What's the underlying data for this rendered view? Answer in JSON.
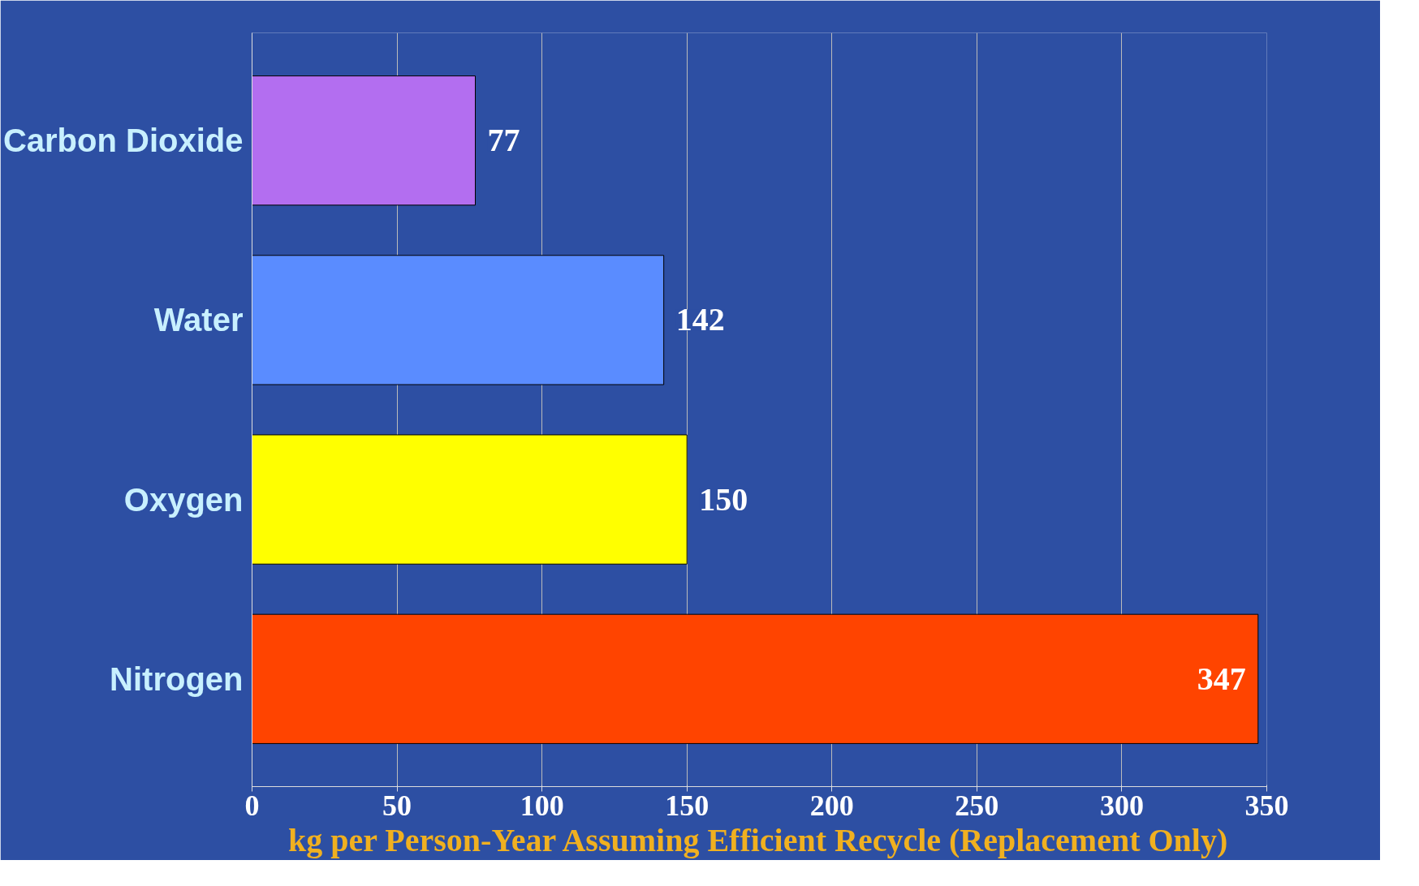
{
  "chart_data": {
    "type": "bar",
    "orientation": "horizontal",
    "categories": [
      "Carbon Dioxide",
      "Water",
      "Oxygen",
      "Nitrogen"
    ],
    "values": [
      77,
      142,
      150,
      347
    ],
    "colors": [
      "#b36ef0",
      "#5a8cff",
      "#ffff00",
      "#ff4400"
    ],
    "xlabel": "kg per Person-Year Assuming Efficient Recycle (Replacement Only)",
    "xlim": [
      0,
      350
    ],
    "xticks": [
      0,
      50,
      100,
      150,
      200,
      250,
      300,
      350
    ],
    "grid": "x",
    "data_labels": true
  }
}
